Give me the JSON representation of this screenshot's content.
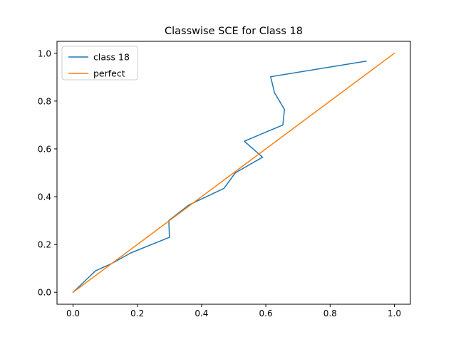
{
  "chart_data": {
    "type": "line",
    "title": "Classwise SCE for Class 18",
    "xlabel": "",
    "ylabel": "",
    "xlim": [
      -0.05,
      1.05
    ],
    "ylim": [
      -0.05,
      1.05
    ],
    "xticks": [
      0.0,
      0.2,
      0.4,
      0.6,
      0.8,
      1.0
    ],
    "yticks": [
      0.0,
      0.2,
      0.4,
      0.6,
      0.8,
      1.0
    ],
    "xtick_labels": [
      "0.0",
      "0.2",
      "0.4",
      "0.6",
      "0.8",
      "1.0"
    ],
    "ytick_labels": [
      "0.0",
      "0.2",
      "0.4",
      "0.6",
      "0.8",
      "1.0"
    ],
    "grid": false,
    "legend_position": "top-left",
    "series": [
      {
        "name": "class 18",
        "color": "#1f77b4",
        "points": [
          [
            0.0,
            0.0
          ],
          [
            0.07,
            0.09
          ],
          [
            0.12,
            0.12
          ],
          [
            0.18,
            0.165
          ],
          [
            0.3,
            0.23
          ],
          [
            0.298,
            0.3
          ],
          [
            0.36,
            0.365
          ],
          [
            0.47,
            0.435
          ],
          [
            0.505,
            0.5
          ],
          [
            0.59,
            0.565
          ],
          [
            0.533,
            0.632
          ],
          [
            0.653,
            0.7
          ],
          [
            0.658,
            0.765
          ],
          [
            0.627,
            0.835
          ],
          [
            0.615,
            0.902
          ],
          [
            0.912,
            0.967
          ]
        ]
      },
      {
        "name": "perfect",
        "color": "#ff7f0e",
        "points": [
          [
            0.0,
            0.0
          ],
          [
            1.0,
            1.0
          ]
        ]
      }
    ]
  }
}
